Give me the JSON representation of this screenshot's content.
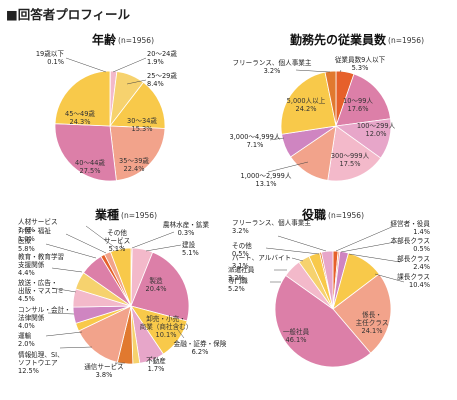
{
  "page": {
    "title": "■回答者プロフィール"
  },
  "colors": {
    "pink": "#dc7fa8",
    "light_pink": "#f3b9ca",
    "salmon": "#f2a38b",
    "yellow": "#f8c94a",
    "purple": "#cf85c1",
    "orange": "#e6602a",
    "dark_orange": "#e1792f",
    "yellow_light": "#f6d26e"
  },
  "chart_data": [
    {
      "type": "pie",
      "title": "年齢",
      "n_label": "(n=1956)",
      "slices": [
        {
          "label": "19歳以下",
          "value": 0.1,
          "value_label": "0.1%",
          "color": "#f3b9ca"
        },
        {
          "label": "20～24歳",
          "value": 1.9,
          "value_label": "1.9%",
          "color": "#f3b9ca"
        },
        {
          "label": "25～29歳",
          "value": 8.4,
          "value_label": "8.4%",
          "color": "#f6d26e"
        },
        {
          "label": "30～34歳",
          "value": 15.3,
          "value_label": "15.3%",
          "color": "#f8c94a"
        },
        {
          "label": "35～39歳",
          "value": 22.4,
          "value_label": "22.4%",
          "color": "#f2a38b"
        },
        {
          "label": "40～44歳",
          "value": 27.5,
          "value_label": "27.5%",
          "color": "#dc7fa8"
        },
        {
          "label": "45～49歳",
          "value": 24.3,
          "value_label": "24.3%",
          "color": "#f8c94a"
        }
      ]
    },
    {
      "type": "pie",
      "title": "勤務先の従業員数",
      "n_label": "(n=1956)",
      "slices": [
        {
          "label": "従業員数9人以下",
          "value": 5.3,
          "value_label": "5.3%",
          "color": "#e6602a"
        },
        {
          "label": "10～99人",
          "value": 17.6,
          "value_label": "17.6%",
          "color": "#dc7fa8"
        },
        {
          "label": "100～299人",
          "value": 12.0,
          "value_label": "12.0%",
          "color": "#e7a6c9"
        },
        {
          "label": "300～999人",
          "value": 17.5,
          "value_label": "17.5%",
          "color": "#f3b9ca"
        },
        {
          "label": "1,000～2,999人",
          "value": 13.1,
          "value_label": "13.1%",
          "color": "#f2a38b"
        },
        {
          "label": "3,000～4,999人",
          "value": 7.1,
          "value_label": "7.1%",
          "color": "#cf85c1"
        },
        {
          "label": "5,000人以上",
          "value": 24.2,
          "value_label": "24.2%",
          "color": "#f8c94a"
        },
        {
          "label": "フリーランス、個人事業主",
          "value": 3.2,
          "value_label": "3.2%",
          "color": "#e1792f"
        }
      ]
    },
    {
      "type": "pie",
      "title": "業種",
      "n_label": "(n=1956)",
      "slices": [
        {
          "label": "農林水産・鉱業",
          "value": 0.3,
          "value_label": "0.3%",
          "color": "#e6602a"
        },
        {
          "label": "建設",
          "value": 5.1,
          "value_label": "5.1%",
          "color": "#f3b9ca"
        },
        {
          "label": "製造",
          "value": 20.4,
          "value_label": "20.4%",
          "color": "#dc7fa8"
        },
        {
          "label": "卸売・小売・商業（商社含む）",
          "value": 10.1,
          "value_label": "10.1%",
          "color": "#f8c94a"
        },
        {
          "label": "金融・証券・保険",
          "value": 6.2,
          "value_label": "6.2%",
          "color": "#e7a6c9"
        },
        {
          "label": "不動産",
          "value": 1.7,
          "value_label": "1.7%",
          "color": "#f6d26e"
        },
        {
          "label": "通信サービス",
          "value": 3.8,
          "value_label": "3.8%",
          "color": "#e1792f"
        },
        {
          "label": "情報処理、SI、ソフトウエア",
          "value": 12.5,
          "value_label": "12.5%",
          "color": "#f2a38b"
        },
        {
          "label": "運輸",
          "value": 2.0,
          "value_label": "2.0%",
          "color": "#f8c94a"
        },
        {
          "label": "コンサル・会計・法律関係",
          "value": 4.0,
          "value_label": "4.0%",
          "color": "#cf85c1"
        },
        {
          "label": "放送・広告・出版・マスコミ",
          "value": 4.5,
          "value_label": "4.5%",
          "color": "#f3b9ca"
        },
        {
          "label": "教育・教育学習支援関係",
          "value": 4.4,
          "value_label": "4.4%",
          "color": "#f6d26e"
        },
        {
          "label": "医療",
          "value": 5.8,
          "value_label": "5.8%",
          "color": "#dc7fa8"
        },
        {
          "label": "介護・福祉",
          "value": 1.0,
          "value_label": "1.0%",
          "color": "#e6602a"
        },
        {
          "label": "人材サービス",
          "value": 1.6,
          "value_label": "1.6%",
          "color": "#f2a38b"
        },
        {
          "label": "その他サービス",
          "value": 5.1,
          "value_label": "5.1%",
          "color": "#f8c94a"
        }
      ]
    },
    {
      "type": "pie",
      "title": "役職",
      "n_label": "(n=1956)",
      "slices": [
        {
          "label": "経営者・役員",
          "value": 1.4,
          "value_label": "1.4%",
          "color": "#e6602a"
        },
        {
          "label": "本部長クラス",
          "value": 0.5,
          "value_label": "0.5%",
          "color": "#f2a38b"
        },
        {
          "label": "部長クラス",
          "value": 2.4,
          "value_label": "2.4%",
          "color": "#cf85c1"
        },
        {
          "label": "課長クラス",
          "value": 10.4,
          "value_label": "10.4%",
          "color": "#f8c94a"
        },
        {
          "label": "係長・主任クラス",
          "value": 24.1,
          "value_label": "24.1%",
          "color": "#f2a38b"
        },
        {
          "label": "一般社員",
          "value": 46.1,
          "value_label": "46.1%",
          "color": "#dc7fa8"
        },
        {
          "label": "専門職",
          "value": 5.2,
          "value_label": "5.2%",
          "color": "#f3b9ca"
        },
        {
          "label": "派遣社員",
          "value": 3.2,
          "value_label": "3.2%",
          "color": "#f6d26e"
        },
        {
          "label": "パート、アルバイト",
          "value": 3.1,
          "value_label": "3.1%",
          "color": "#f8c94a"
        },
        {
          "label": "その他",
          "value": 0.5,
          "value_label": "0.5%",
          "color": "#e1792f"
        },
        {
          "label": "フリーランス、個人事業主",
          "value": 3.2,
          "value_label": "3.2%",
          "color": "#e7a6c9"
        }
      ]
    }
  ]
}
